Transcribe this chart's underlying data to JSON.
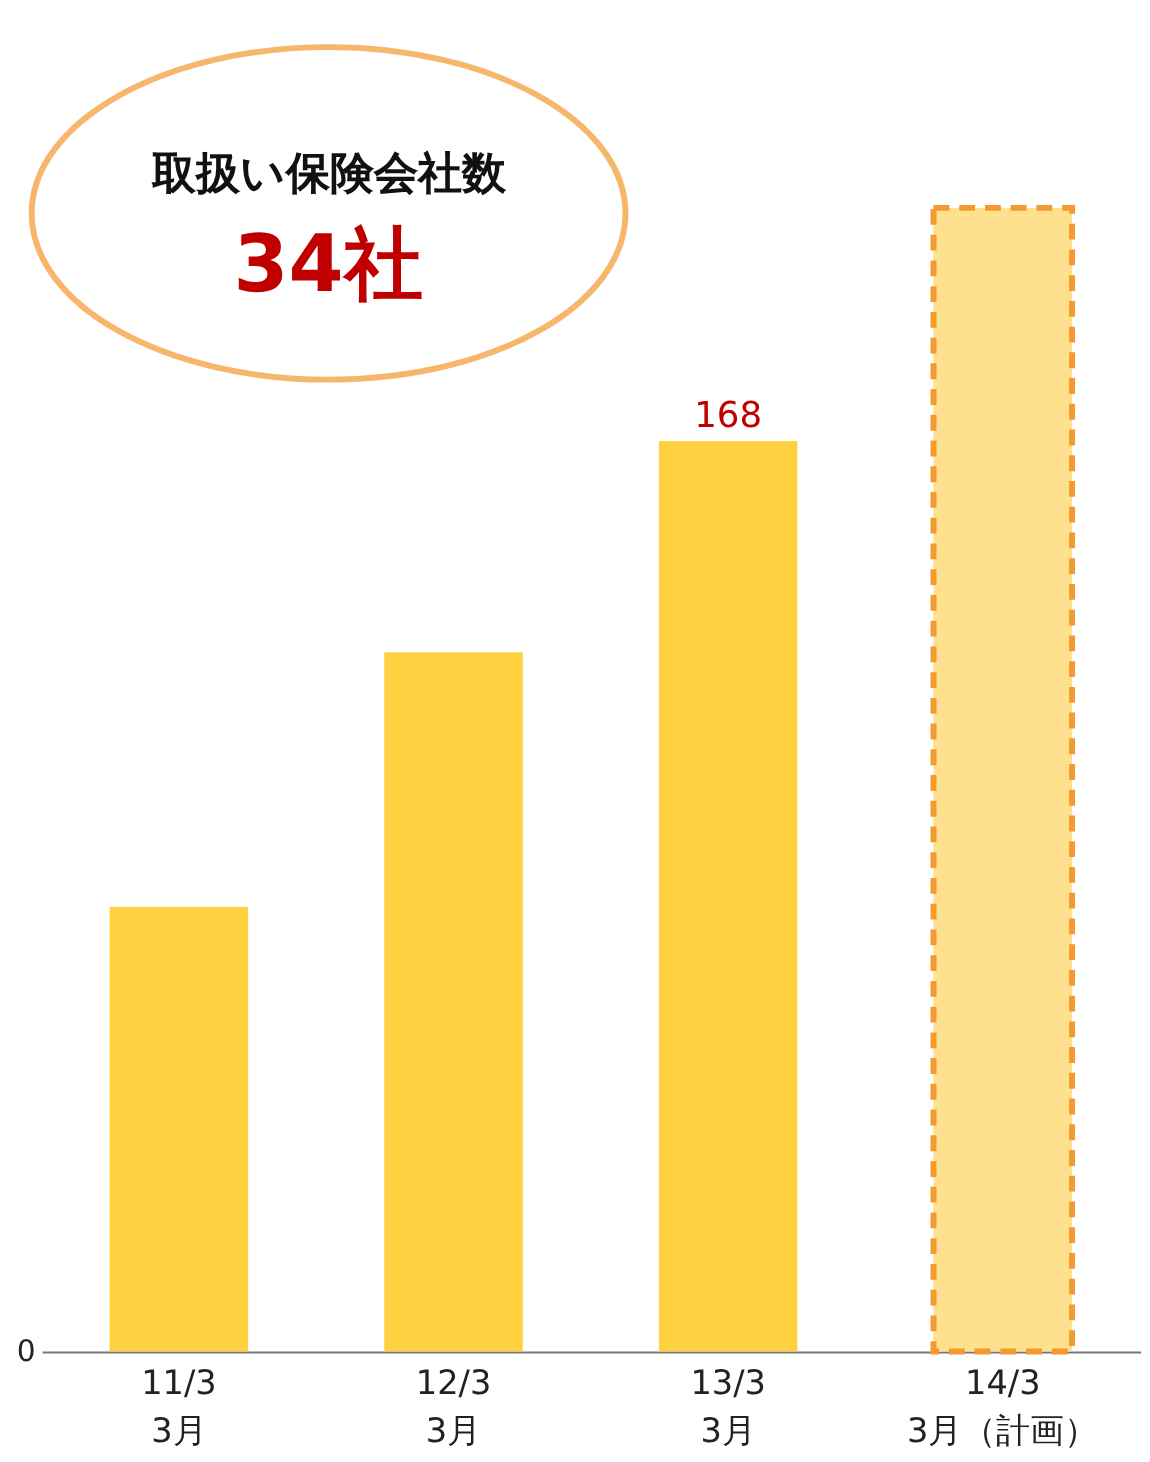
{
  "chart_data": {
    "type": "bar",
    "categories": [
      "11/3\n3月",
      "12/3\n3月",
      "13/3\n3月",
      "14/3\n3月（計画）"
    ],
    "series": [
      {
        "color": "#ffd040",
        "values": [
          82,
          129,
          168,
          null
        ],
        "value_labels": [
          null,
          null,
          "168",
          null
        ]
      },
      {
        "color": "#ffe08f",
        "values": [
          null,
          null,
          null,
          211
        ],
        "line_style": "dashed"
      }
    ],
    "annotations": [
      "取扱い保険会社数",
      "34社",
      "0"
    ]
  }
}
